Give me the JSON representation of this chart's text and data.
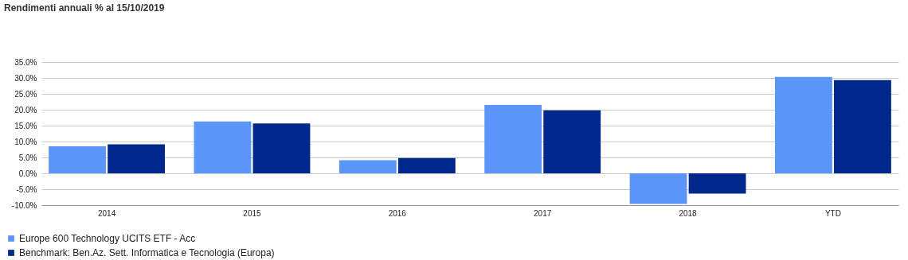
{
  "chart_data": {
    "type": "bar",
    "title": "Rendimenti annuali % al 15/10/2019",
    "categories": [
      "2014",
      "2015",
      "2016",
      "2017",
      "2018",
      "YTD"
    ],
    "series": [
      {
        "name": "Europe 600 Technology UCITS ETF - Acc",
        "color": "#5b95f9",
        "values": [
          8.5,
          16.3,
          4.1,
          21.5,
          -9.6,
          30.3
        ]
      },
      {
        "name": "Benchmark: Ben.Az. Sett. Informatica e Tecnologia (Europa)",
        "color": "#00288c",
        "values": [
          9.1,
          15.7,
          4.8,
          19.8,
          -6.4,
          29.3
        ]
      }
    ],
    "ylim": [
      -10,
      35
    ],
    "yticks": [
      {
        "value": -10,
        "label": "-10.0%"
      },
      {
        "value": -5,
        "label": "-5.0%"
      },
      {
        "value": 0,
        "label": "0.0%"
      },
      {
        "value": 5,
        "label": "5.0%"
      },
      {
        "value": 10,
        "label": "10.0%"
      },
      {
        "value": 15,
        "label": "15.0%"
      },
      {
        "value": 20,
        "label": "20.0%"
      },
      {
        "value": 25,
        "label": "25.0%"
      },
      {
        "value": 30,
        "label": "30.0%"
      },
      {
        "value": 35,
        "label": "35.0%"
      }
    ],
    "grid": "y",
    "legend": "bottom left"
  }
}
